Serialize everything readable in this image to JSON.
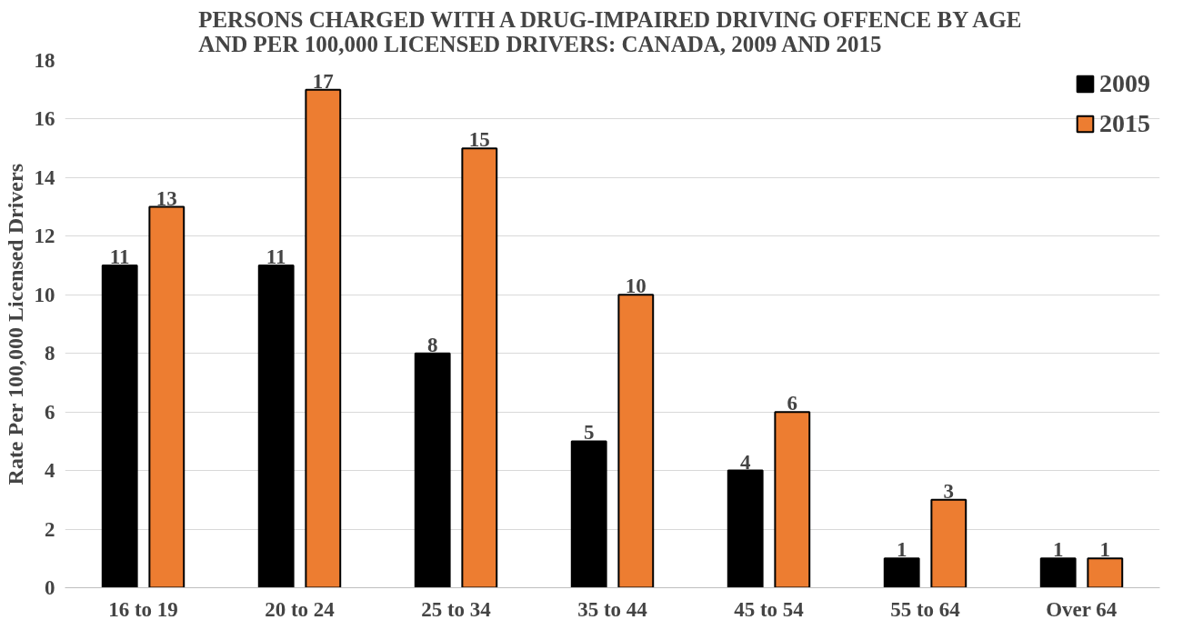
{
  "chart_data": {
    "type": "bar",
    "title": "PERSONS CHARGED WITH A DRUG-IMPAIRED DRIVING OFFENCE BY AGE\nAND PER 100,000 LICENSED DRIVERS: CANADA, 2009 AND 2015",
    "ylabel": "Rate Per 100,000 Licensed Drivers",
    "categories": [
      "16 to 19",
      "20 to 24",
      "25 to 34",
      "35 to 44",
      "45 to 54",
      "55 to 64",
      "Over 64"
    ],
    "series": [
      {
        "name": "2009",
        "color": "#000000",
        "values": [
          11,
          11,
          8,
          5,
          4,
          1,
          1
        ]
      },
      {
        "name": "2015",
        "color": "#ed7d31",
        "values": [
          13,
          17,
          15,
          10,
          6,
          3,
          1
        ]
      }
    ],
    "ylim": [
      0,
      18
    ],
    "yticks": [
      0,
      2,
      4,
      6,
      8,
      10,
      12,
      14,
      16,
      18
    ],
    "grid": "y",
    "legend": "top right",
    "data_labels": true
  }
}
